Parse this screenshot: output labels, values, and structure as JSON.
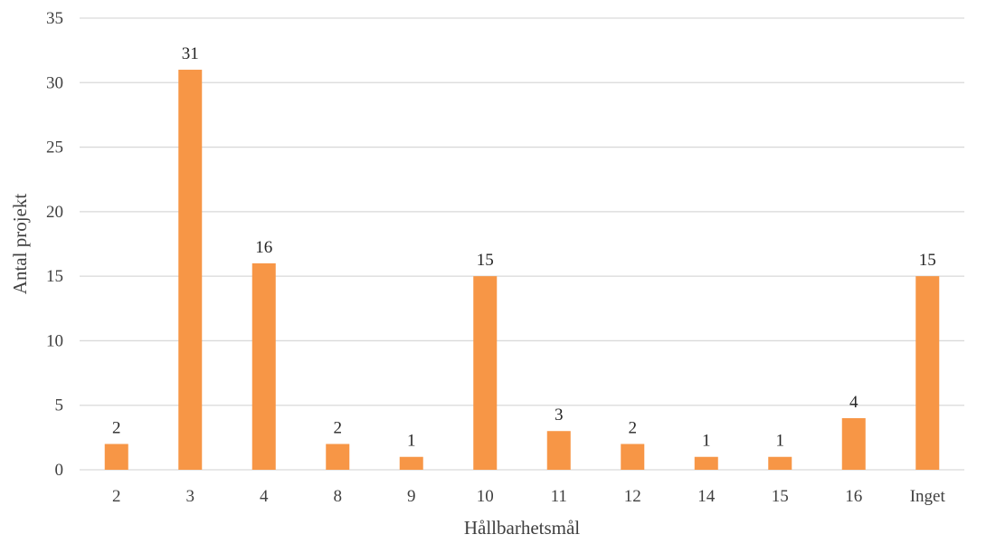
{
  "chart_data": {
    "type": "bar",
    "title": "",
    "xlabel": "Hållbarhetsmål",
    "ylabel": "Antal projekt",
    "categories": [
      "2",
      "3",
      "4",
      "8",
      "9",
      "10",
      "11",
      "12",
      "14",
      "15",
      "16",
      "Inget"
    ],
    "series": [
      {
        "values": [
          2,
          31,
          16,
          2,
          1,
          15,
          3,
          2,
          1,
          1,
          4,
          15
        ],
        "color": "#f79646"
      }
    ],
    "ylim": [
      0,
      35
    ],
    "yticks": [
      0,
      5,
      10,
      15,
      20,
      25,
      30,
      35
    ],
    "grid": true,
    "legend": "none",
    "data_labels": true
  }
}
